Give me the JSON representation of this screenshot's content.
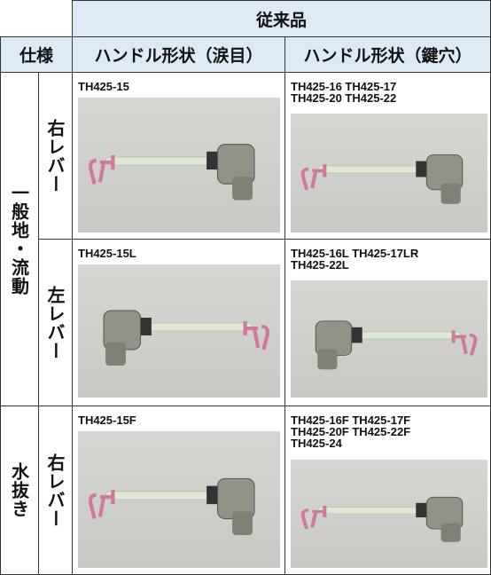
{
  "table": {
    "group_header": "従来品",
    "spec_header": "仕様",
    "columns": [
      "ハンドル形状（涙目）",
      "ハンドル形状（鍵穴）"
    ],
    "groups": [
      {
        "label": "一般地・流動",
        "rows": [
          {
            "lever": "右レバー",
            "cells": [
              [
                "TH425-15"
              ],
              [
                "TH425-16 TH425-17",
                "TH425-20 TH425-22"
              ]
            ]
          },
          {
            "lever": "左レバー",
            "cells": [
              [
                "TH425-15L"
              ],
              [
                "TH425-16L TH425-17LR",
                "TH425-22L"
              ]
            ]
          }
        ]
      },
      {
        "label": "水抜き",
        "rows": [
          {
            "lever": "右レバー",
            "cells": [
              [
                "TH425-15F"
              ],
              [
                "TH425-16F TH425-17F",
                "TH425-20F TH425-22F",
                "TH425-24"
              ]
            ]
          }
        ]
      }
    ]
  }
}
